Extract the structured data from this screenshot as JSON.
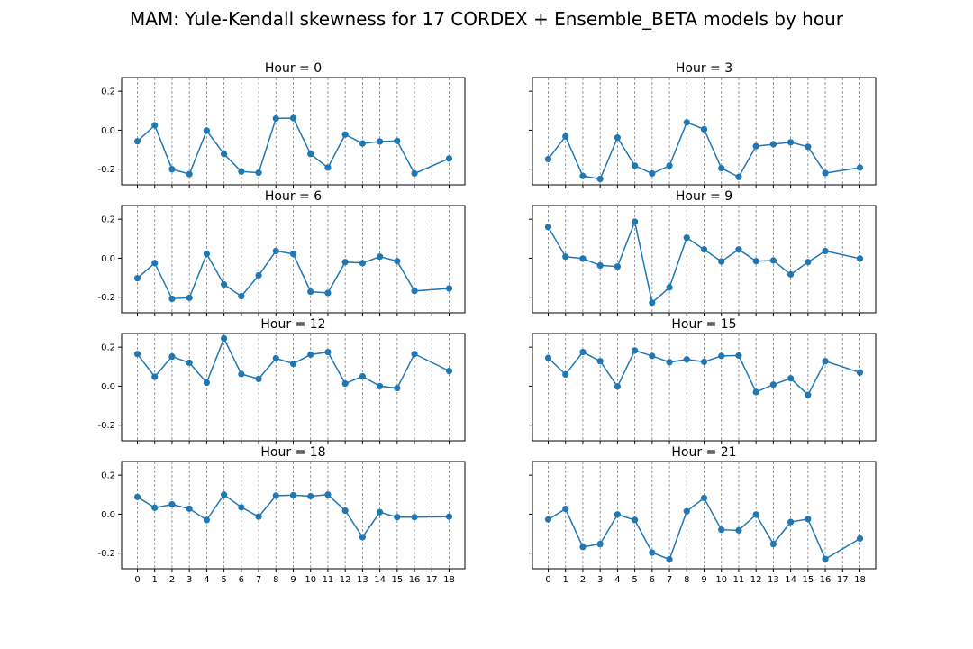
{
  "figure": {
    "suptitle": "MAM: Yule-Kendall skewness for 17 CORDEX + Ensemble_BETA models by hour"
  },
  "style": {
    "line_color": "#1f77b4",
    "grid_color": "#808080",
    "axes_color": "#000000"
  },
  "chart_data": [
    {
      "type": "line",
      "title": "Hour = 0",
      "xlabel": "",
      "ylabel": "",
      "x": [
        0,
        1,
        2,
        3,
        4,
        5,
        6,
        7,
        8,
        9,
        10,
        11,
        12,
        13,
        14,
        15,
        16,
        17,
        18
      ],
      "ylim": [
        -0.28,
        0.27
      ],
      "yticks": [
        -0.2,
        0.0,
        0.2
      ],
      "grid": "vertical dashed",
      "series": [
        {
          "x": [
            0,
            1,
            2,
            3,
            4,
            5,
            6,
            7,
            8,
            9,
            10,
            11,
            12,
            13,
            14,
            15,
            16,
            18
          ],
          "values": [
            -0.057,
            0.025,
            -0.2,
            -0.225,
            -0.002,
            -0.122,
            -0.212,
            -0.218,
            0.06,
            0.062,
            -0.122,
            -0.192,
            -0.022,
            -0.068,
            -0.058,
            -0.055,
            -0.222,
            -0.145
          ]
        }
      ]
    },
    {
      "type": "line",
      "title": "Hour = 3",
      "xlabel": "",
      "ylabel": "",
      "x": [
        0,
        1,
        2,
        3,
        4,
        5,
        6,
        7,
        8,
        9,
        10,
        11,
        12,
        13,
        14,
        15,
        16,
        17,
        18
      ],
      "ylim": [
        -0.28,
        0.27
      ],
      "yticks": [
        -0.2,
        0.0,
        0.2
      ],
      "grid": "vertical dashed",
      "series": [
        {
          "x": [
            0,
            1,
            2,
            3,
            4,
            5,
            6,
            7,
            8,
            9,
            10,
            11,
            12,
            13,
            14,
            15,
            16,
            18
          ],
          "values": [
            -0.148,
            -0.032,
            -0.235,
            -0.25,
            -0.038,
            -0.182,
            -0.222,
            -0.182,
            0.04,
            0.005,
            -0.195,
            -0.24,
            -0.082,
            -0.072,
            -0.062,
            -0.085,
            -0.22,
            -0.192
          ]
        }
      ]
    },
    {
      "type": "line",
      "title": "Hour = 6",
      "xlabel": "",
      "ylabel": "",
      "x": [
        0,
        1,
        2,
        3,
        4,
        5,
        6,
        7,
        8,
        9,
        10,
        11,
        12,
        13,
        14,
        15,
        16,
        17,
        18
      ],
      "ylim": [
        -0.28,
        0.27
      ],
      "yticks": [
        -0.2,
        0.0,
        0.2
      ],
      "grid": "vertical dashed",
      "series": [
        {
          "x": [
            0,
            1,
            2,
            3,
            4,
            5,
            6,
            7,
            8,
            9,
            10,
            11,
            12,
            13,
            14,
            15,
            16,
            18
          ],
          "values": [
            -0.103,
            -0.025,
            -0.208,
            -0.203,
            0.022,
            -0.135,
            -0.195,
            -0.088,
            0.037,
            0.022,
            -0.172,
            -0.178,
            -0.02,
            -0.025,
            0.008,
            -0.015,
            -0.168,
            -0.155
          ]
        }
      ]
    },
    {
      "type": "line",
      "title": "Hour = 9",
      "xlabel": "",
      "ylabel": "",
      "x": [
        0,
        1,
        2,
        3,
        4,
        5,
        6,
        7,
        8,
        9,
        10,
        11,
        12,
        13,
        14,
        15,
        16,
        17,
        18
      ],
      "ylim": [
        -0.28,
        0.27
      ],
      "yticks": [
        -0.2,
        0.0,
        0.2
      ],
      "grid": "vertical dashed",
      "series": [
        {
          "x": [
            0,
            1,
            2,
            3,
            4,
            5,
            6,
            7,
            8,
            9,
            10,
            11,
            12,
            13,
            14,
            15,
            16,
            18
          ],
          "values": [
            0.16,
            0.008,
            -0.002,
            -0.037,
            -0.043,
            0.187,
            -0.228,
            -0.15,
            0.105,
            0.045,
            -0.017,
            0.045,
            -0.015,
            -0.012,
            -0.083,
            -0.02,
            0.037,
            -0.002
          ]
        }
      ]
    },
    {
      "type": "line",
      "title": "Hour = 12",
      "xlabel": "",
      "ylabel": "",
      "x": [
        0,
        1,
        2,
        3,
        4,
        5,
        6,
        7,
        8,
        9,
        10,
        11,
        12,
        13,
        14,
        15,
        16,
        17,
        18
      ],
      "ylim": [
        -0.28,
        0.27
      ],
      "yticks": [
        -0.2,
        0.0,
        0.2
      ],
      "grid": "vertical dashed",
      "series": [
        {
          "x": [
            0,
            1,
            2,
            3,
            4,
            5,
            6,
            7,
            8,
            9,
            10,
            11,
            12,
            13,
            14,
            15,
            16,
            18
          ],
          "values": [
            0.165,
            0.048,
            0.152,
            0.12,
            0.018,
            0.245,
            0.062,
            0.037,
            0.143,
            0.115,
            0.162,
            0.175,
            0.013,
            0.05,
            0.0,
            -0.01,
            0.165,
            0.078
          ]
        }
      ]
    },
    {
      "type": "line",
      "title": "Hour = 15",
      "xlabel": "",
      "ylabel": "",
      "x": [
        0,
        1,
        2,
        3,
        4,
        5,
        6,
        7,
        8,
        9,
        10,
        11,
        12,
        13,
        14,
        15,
        16,
        17,
        18
      ],
      "ylim": [
        -0.28,
        0.27
      ],
      "yticks": [
        -0.2,
        0.0,
        0.2
      ],
      "grid": "vertical dashed",
      "series": [
        {
          "x": [
            0,
            1,
            2,
            3,
            4,
            5,
            6,
            7,
            8,
            9,
            10,
            11,
            12,
            13,
            14,
            15,
            16,
            18
          ],
          "values": [
            0.145,
            0.06,
            0.175,
            0.128,
            -0.002,
            0.183,
            0.155,
            0.123,
            0.137,
            0.125,
            0.155,
            0.157,
            -0.03,
            0.008,
            0.04,
            -0.045,
            0.128,
            0.07
          ]
        }
      ]
    },
    {
      "type": "line",
      "title": "Hour = 18",
      "xlabel": "",
      "ylabel": "",
      "x": [
        0,
        1,
        2,
        3,
        4,
        5,
        6,
        7,
        8,
        9,
        10,
        11,
        12,
        13,
        14,
        15,
        16,
        17,
        18
      ],
      "ylim": [
        -0.28,
        0.27
      ],
      "yticks": [
        -0.2,
        0.0,
        0.2
      ],
      "grid": "vertical dashed",
      "series": [
        {
          "x": [
            0,
            1,
            2,
            3,
            4,
            5,
            6,
            7,
            8,
            9,
            10,
            11,
            12,
            13,
            14,
            15,
            16,
            18
          ],
          "values": [
            0.088,
            0.033,
            0.05,
            0.028,
            -0.03,
            0.1,
            0.035,
            -0.013,
            0.095,
            0.097,
            0.092,
            0.1,
            0.018,
            -0.118,
            0.01,
            -0.015,
            -0.015,
            -0.013
          ]
        }
      ]
    },
    {
      "type": "line",
      "title": "Hour = 21",
      "xlabel": "",
      "ylabel": "",
      "x": [
        0,
        1,
        2,
        3,
        4,
        5,
        6,
        7,
        8,
        9,
        10,
        11,
        12,
        13,
        14,
        15,
        16,
        17,
        18
      ],
      "ylim": [
        -0.28,
        0.27
      ],
      "yticks": [
        -0.2,
        0.0,
        0.2
      ],
      "grid": "vertical dashed",
      "series": [
        {
          "x": [
            0,
            1,
            2,
            3,
            4,
            5,
            6,
            7,
            8,
            9,
            10,
            11,
            12,
            13,
            14,
            15,
            16,
            18
          ],
          "values": [
            -0.027,
            0.027,
            -0.168,
            -0.153,
            -0.002,
            -0.03,
            -0.197,
            -0.232,
            0.015,
            0.083,
            -0.08,
            -0.083,
            -0.002,
            -0.153,
            -0.04,
            -0.025,
            -0.23,
            -0.125
          ]
        }
      ]
    }
  ]
}
